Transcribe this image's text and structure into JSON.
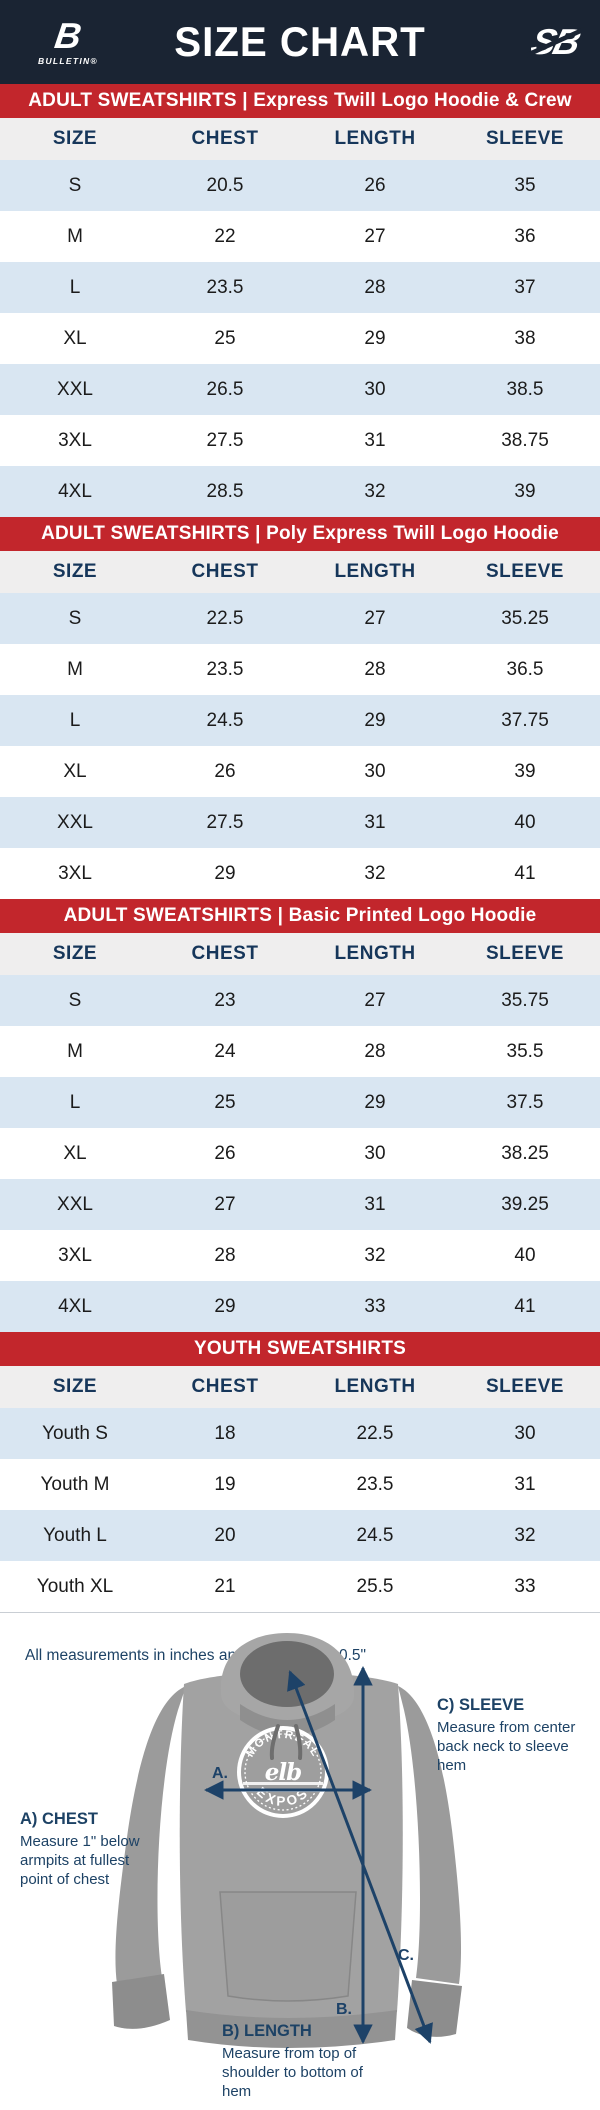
{
  "colors": {
    "navy": "#1a2433",
    "red": "#c2262c",
    "row_alt": "#d9e6f2",
    "header_row": "#efeeee",
    "header_text": "#16365a",
    "cell_text": "#1b1b1b",
    "ink": "#1d4265",
    "arrow": "#1d4268"
  },
  "header": {
    "title": "SIZE CHART",
    "left_logo_mark": "B",
    "left_logo_word": "BULLETIN®",
    "right_logo_mark": "SB"
  },
  "columns": [
    "SIZE",
    "CHEST",
    "LENGTH",
    "SLEEVE"
  ],
  "tables": [
    {
      "banner": "ADULT SWEATSHIRTS | Express Twill Logo Hoodie & Crew",
      "rows": [
        [
          "S",
          "20.5",
          "26",
          "35"
        ],
        [
          "M",
          "22",
          "27",
          "36"
        ],
        [
          "L",
          "23.5",
          "28",
          "37"
        ],
        [
          "XL",
          "25",
          "29",
          "38"
        ],
        [
          "XXL",
          "26.5",
          "30",
          "38.5"
        ],
        [
          "3XL",
          "27.5",
          "31",
          "38.75"
        ],
        [
          "4XL",
          "28.5",
          "32",
          "39"
        ]
      ]
    },
    {
      "banner": "ADULT SWEATSHIRTS | Poly Express Twill Logo Hoodie",
      "rows": [
        [
          "S",
          "22.5",
          "27",
          "35.25"
        ],
        [
          "M",
          "23.5",
          "28",
          "36.5"
        ],
        [
          "L",
          "24.5",
          "29",
          "37.75"
        ],
        [
          "XL",
          "26",
          "30",
          "39"
        ],
        [
          "XXL",
          "27.5",
          "31",
          "40"
        ],
        [
          "3XL",
          "29",
          "32",
          "41"
        ]
      ]
    },
    {
      "banner": "ADULT SWEATSHIRTS | Basic Printed Logo Hoodie",
      "rows": [
        [
          "S",
          "23",
          "27",
          "35.75"
        ],
        [
          "M",
          "24",
          "28",
          "35.5"
        ],
        [
          "L",
          "25",
          "29",
          "37.5"
        ],
        [
          "XL",
          "26",
          "30",
          "38.25"
        ],
        [
          "XXL",
          "27",
          "31",
          "39.25"
        ],
        [
          "3XL",
          "28",
          "32",
          "40"
        ],
        [
          "4XL",
          "29",
          "33",
          "41"
        ]
      ]
    },
    {
      "banner": "YOUTH SWEATSHIRTS",
      "rows": [
        [
          "Youth S",
          "18",
          "22.5",
          "30"
        ],
        [
          "Youth M",
          "19",
          "23.5",
          "31"
        ],
        [
          "Youth L",
          "20",
          "24.5",
          "32"
        ],
        [
          "Youth XL",
          "21",
          "25.5",
          "33"
        ]
      ]
    }
  ],
  "note": "All measurements in inches and may vary +/- 0.5\"",
  "diagram": {
    "marker_a": "A.",
    "marker_b": "B.",
    "marker_c": "C.",
    "chest_label": "A) CHEST",
    "chest_desc": "Measure 1\" below armpits at fullest point of chest",
    "length_label": "B) LENGTH",
    "length_desc": "Measure from top of shoulder to bottom of hem",
    "sleeve_label": "C) SLEEVE",
    "sleeve_desc": "Measure from center back neck to sleeve hem",
    "logo_top_text": "MONTRÉAL",
    "logo_bottom_text": "EXPOS",
    "logo_mark": "elb"
  }
}
